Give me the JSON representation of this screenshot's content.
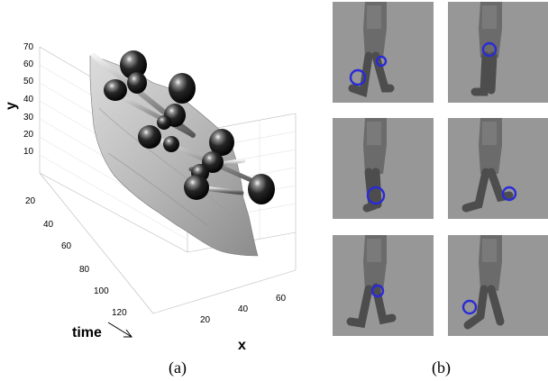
{
  "panel_a": {
    "caption": "(a)",
    "y_axis": {
      "label": "y",
      "ticks": [
        "70",
        "60",
        "50",
        "40",
        "30",
        "20",
        "10"
      ]
    },
    "time_axis": {
      "label": "time",
      "ticks": [
        "20",
        "40",
        "60",
        "80",
        "100",
        "120"
      ]
    },
    "x_axis": {
      "label": "x",
      "ticks": [
        "20",
        "40",
        "60"
      ]
    }
  },
  "panel_b": {
    "caption": "(b)",
    "marker_color": "#2a2ad8",
    "thumbnails": [
      {
        "name": "frame-1",
        "markers": 2
      },
      {
        "name": "frame-2",
        "markers": 1
      },
      {
        "name": "frame-3",
        "markers": 1
      },
      {
        "name": "frame-4",
        "markers": 1
      },
      {
        "name": "frame-5",
        "markers": 1
      },
      {
        "name": "frame-6",
        "markers": 1
      }
    ]
  }
}
